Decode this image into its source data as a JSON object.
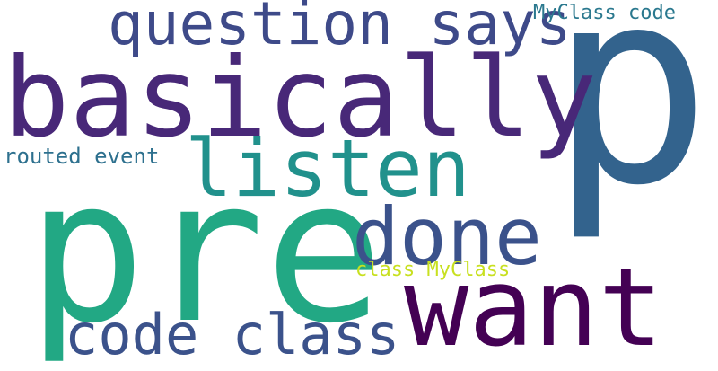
{
  "words": {
    "p": {
      "text": "p",
      "color": "#33638d"
    },
    "basically": {
      "text": "basically",
      "color": "#482878"
    },
    "pre": {
      "text": "pre",
      "color": "#22a884"
    },
    "want": {
      "text": "want",
      "color": "#440154"
    },
    "listen": {
      "text": "listen",
      "color": "#21918c"
    },
    "done": {
      "text": "done",
      "color": "#3b528b"
    },
    "question_says": {
      "text": "question says",
      "color": "#3e4a89"
    },
    "code_class": {
      "text": "code class",
      "color": "#3b528b"
    },
    "myclass_code": {
      "text": "MyClass code",
      "color": "#2a788e"
    },
    "routed_event": {
      "text": "routed event",
      "color": "#2d708e"
    },
    "class_myclass": {
      "text": "class MyClass",
      "color": "#c8e020"
    }
  }
}
